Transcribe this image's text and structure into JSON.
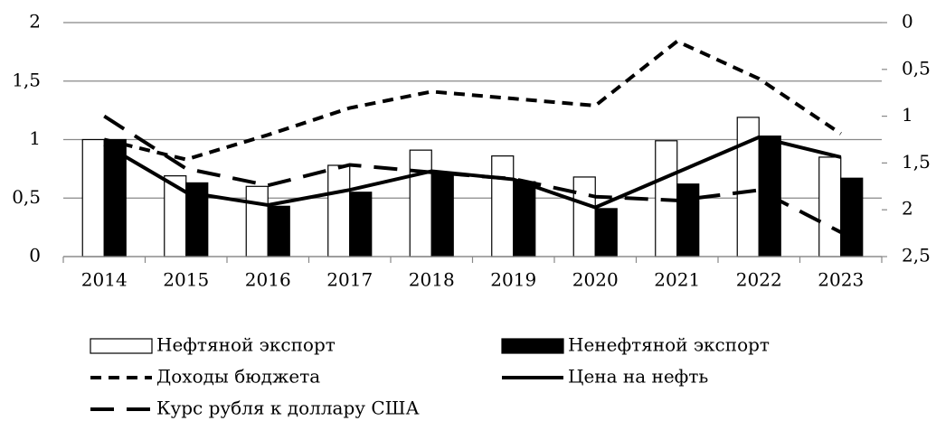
{
  "chart_data": {
    "type": "combo",
    "categories": [
      "2014",
      "2015",
      "2016",
      "2017",
      "2018",
      "2019",
      "2020",
      "2021",
      "2022",
      "2023"
    ],
    "series": [
      {
        "name": "Нефтяной экспорт",
        "kind": "bar",
        "color": "#ffffff",
        "values": [
          1.0,
          0.69,
          0.6,
          0.78,
          0.91,
          0.86,
          0.68,
          0.99,
          1.19,
          0.85
        ]
      },
      {
        "name": "Ненефтяной экспорт",
        "kind": "bar",
        "color": "#000000",
        "values": [
          1.0,
          0.63,
          0.43,
          0.55,
          0.72,
          0.64,
          0.41,
          0.62,
          1.03,
          0.67
        ]
      },
      {
        "name": "Доходы бюджета",
        "kind": "line",
        "dash": "short",
        "color": "#000000",
        "values": [
          1.0,
          0.83,
          1.04,
          1.27,
          1.41,
          1.35,
          1.29,
          1.84,
          1.52,
          1.05
        ]
      },
      {
        "name": "Цена на нефть",
        "kind": "line",
        "dash": "solid",
        "color": "#000000",
        "values": [
          0.96,
          0.55,
          0.44,
          0.57,
          0.73,
          0.66,
          0.42,
          0.72,
          1.02,
          0.85
        ]
      },
      {
        "name": "Курс рубля к доллару США",
        "kind": "line",
        "dash": "long",
        "axis": "y2",
        "color": "#000000",
        "values": [
          1.0,
          1.56,
          1.74,
          1.52,
          1.6,
          1.67,
          1.86,
          1.9,
          1.79,
          2.24
        ]
      }
    ],
    "ylim": [
      0,
      2
    ],
    "yticks": [
      0,
      {
        "value": 0.5,
        "label": "0,5"
      },
      1,
      {
        "value": 1.5,
        "label": "1,5"
      },
      2
    ],
    "y2lim": [
      0,
      2.5
    ],
    "y2_inverted": true,
    "y2ticks": [
      0,
      {
        "value": 0.5,
        "label": "0,5"
      },
      1,
      {
        "value": 1.5,
        "label": "1,5"
      },
      2,
      {
        "value": 2.5,
        "label": "2,5"
      }
    ],
    "grid": true,
    "legend": "bottom"
  }
}
